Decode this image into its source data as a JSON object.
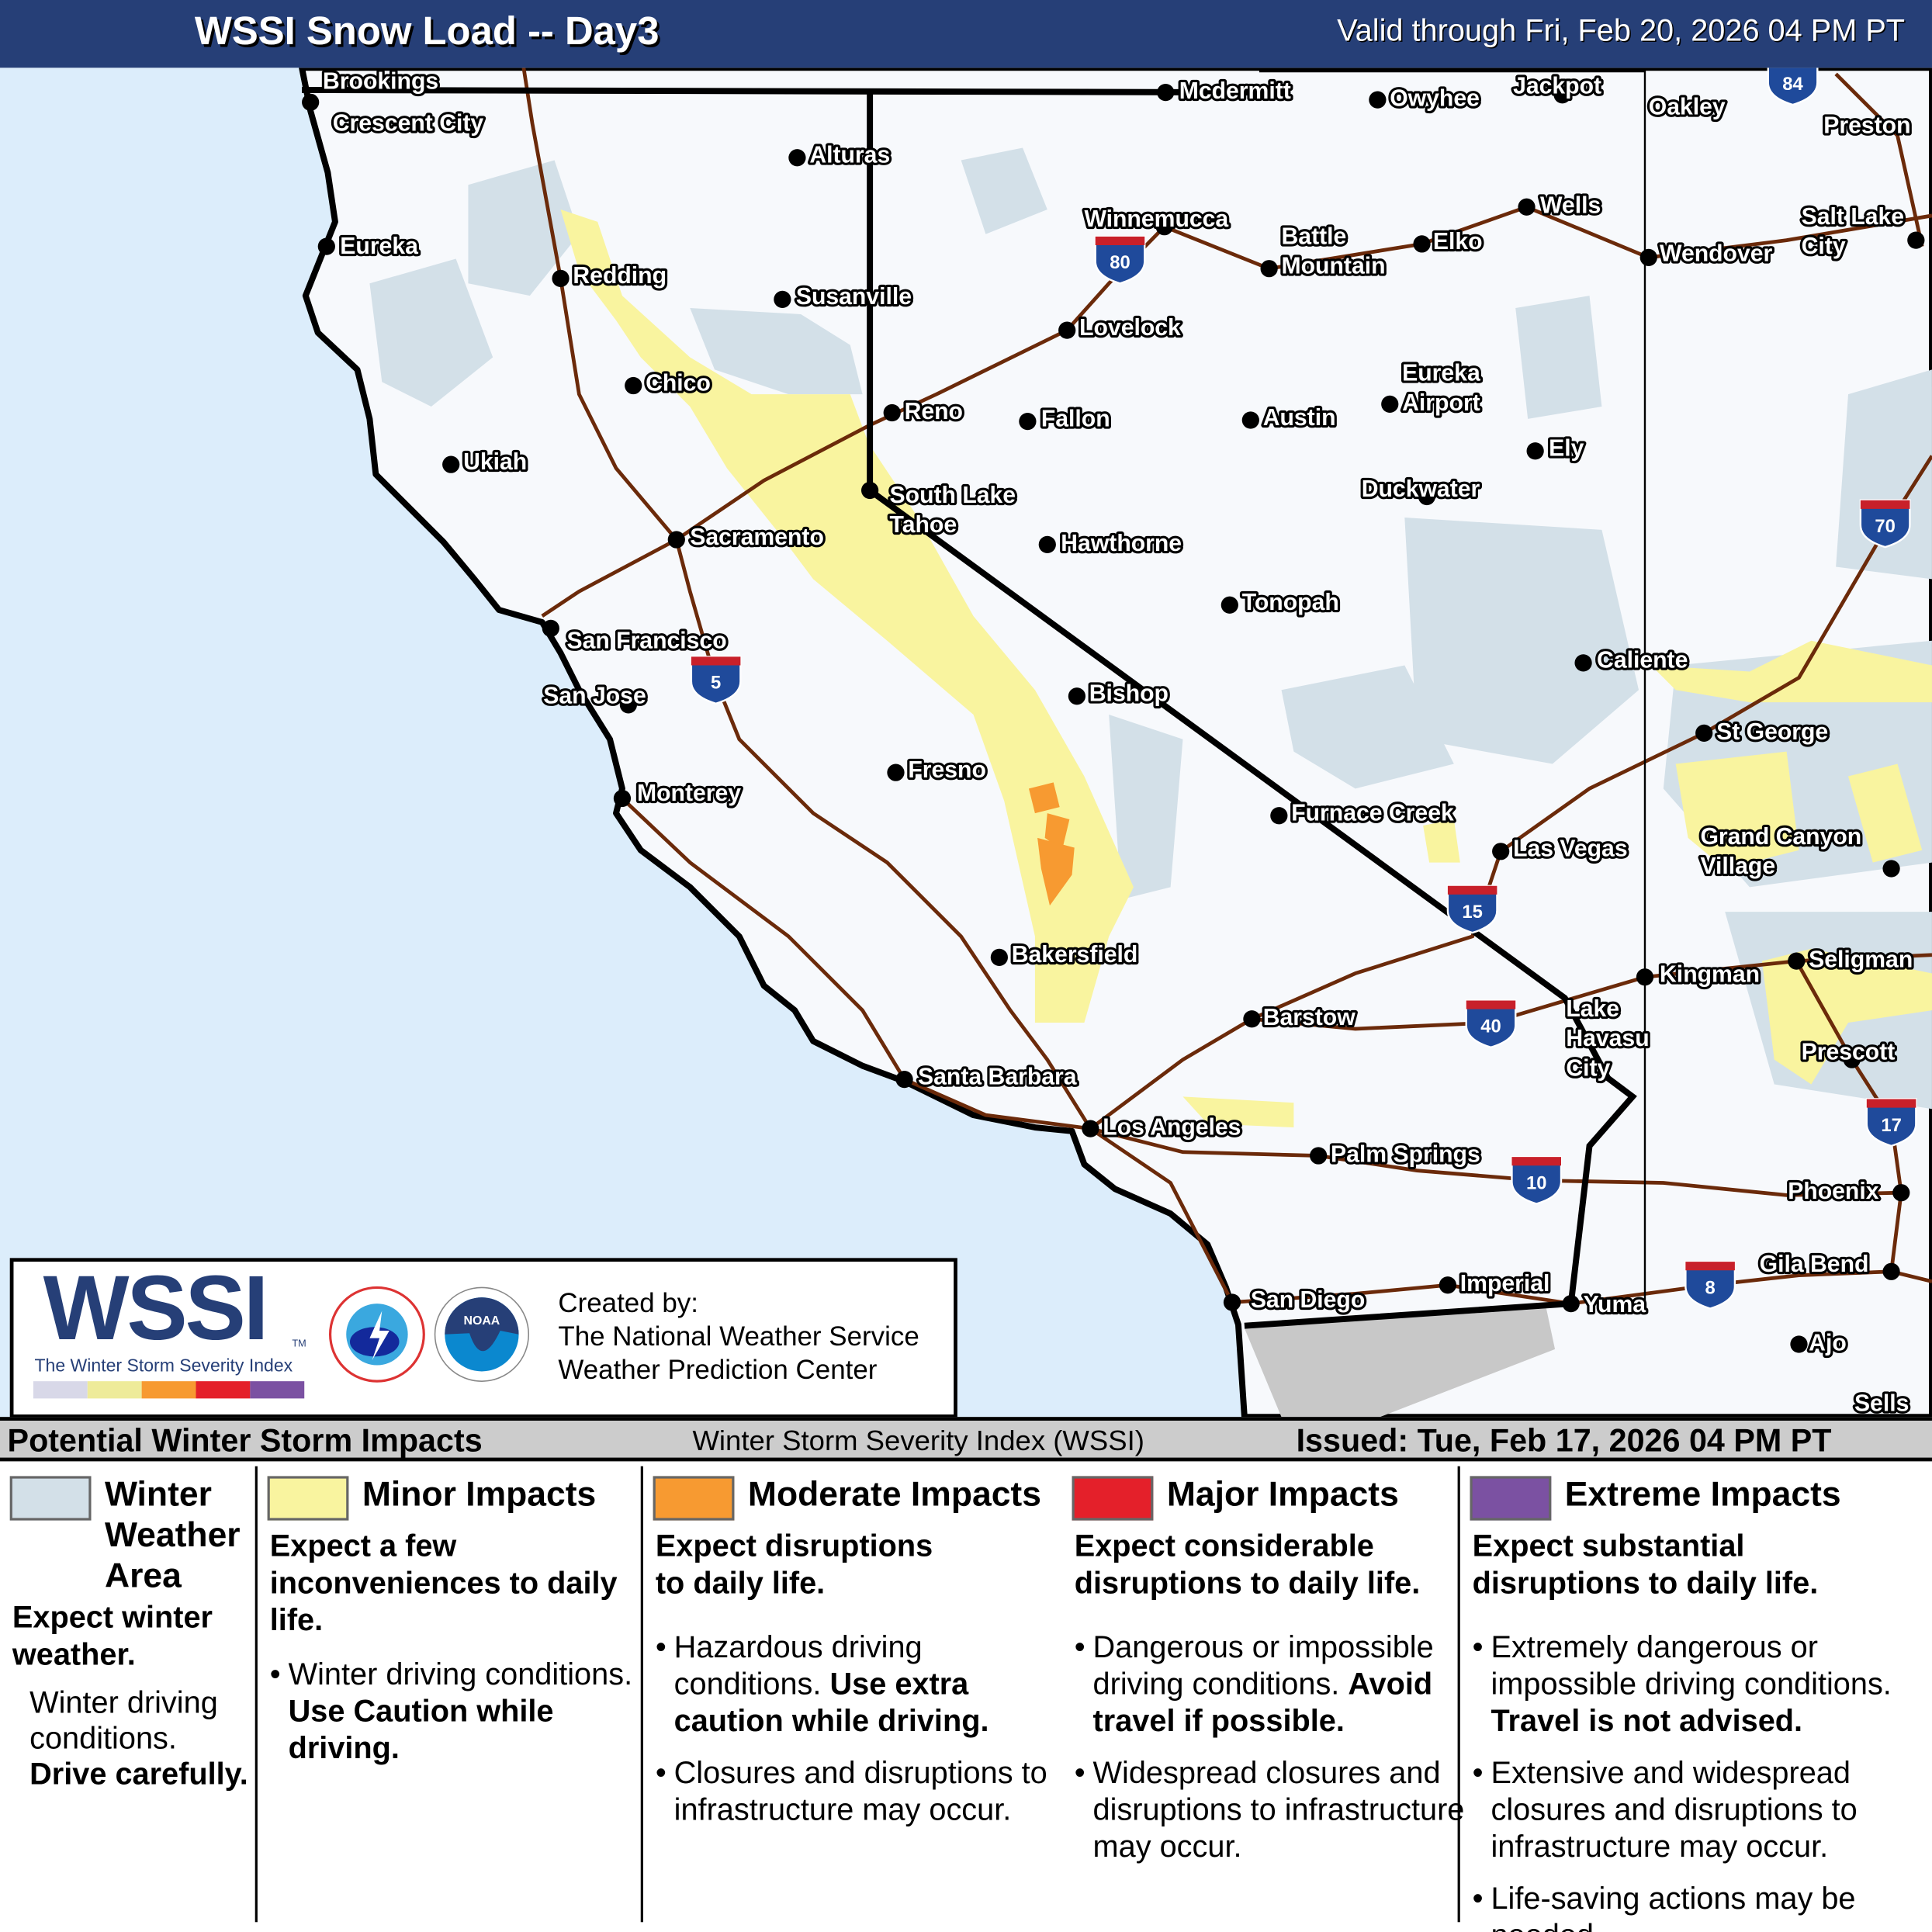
{
  "header": {
    "title": "WSSI Snow Load -- Day3",
    "valid": "Valid through Fri, Feb 20, 2026 04 PM PT"
  },
  "colors": {
    "header_bg": "#263f77",
    "ocean": "#dcedfb",
    "land": "#f7f9fc",
    "mexico": "#c8c8c8",
    "winter_weather_area": "#d3e0e8",
    "minor": "#f9f49f",
    "moderate": "#f79a31",
    "major": "#e4202a",
    "extreme": "#7b51a2",
    "roads": "#6b2a0a",
    "borders": "#000000"
  },
  "map": {
    "cities": [
      "Brookings",
      "Crescent City",
      "Alturas",
      "Eureka",
      "Redding",
      "Susanville",
      "Winnemucca",
      "Battle\nMountain",
      "Elko",
      "Wells",
      "Wendover",
      "Salt Lake\nCity",
      "Mcdermitt",
      "Owyhee",
      "Jackpot",
      "Oakley",
      "Preston",
      "Lovelock",
      "Chico",
      "Reno",
      "Fallon",
      "Austin",
      "Eureka\nAirport",
      "Ely",
      "Ukiah",
      "South Lake\nTahoe",
      "Duckwater",
      "Sacramento",
      "Hawthorne",
      "Tonopah",
      "San Francisco",
      "San Jose",
      "Caliente",
      "Bishop",
      "St George",
      "Fresno",
      "Monterey",
      "Furnace Creek",
      "Grand Canyon\nVillage",
      "Las Vegas",
      "Bakersfield",
      "Kingman",
      "Seligman",
      "Lake\nHavasu\nCity",
      "Barstow",
      "Prescott",
      "Santa Barbara",
      "Los Angeles",
      "Palm Springs",
      "Phoenix",
      "Gila Bend",
      "San Diego",
      "Imperial",
      "Yuma",
      "Ajo",
      "Sells"
    ],
    "interstates": [
      "84",
      "80",
      "70",
      "5",
      "15",
      "40",
      "17",
      "10",
      "8"
    ]
  },
  "logo": {
    "wssi": "WSSI",
    "tm": "TM",
    "subtitle": "The Winter Storm Severity Index",
    "created_by": "Created by:",
    "org1": "The National Weather Service",
    "org2": "Weather Prediction Center",
    "nws_seal": "NATIONAL WEATHER SERVICE",
    "noaa_seal": "NOAA"
  },
  "legend_bar": {
    "left": "Potential Winter Storm Impacts",
    "center": "Winter Storm Severity Index (WSSI)",
    "issued": "Issued: Tue, Feb 17, 2026 04 PM PT"
  },
  "legend": [
    {
      "title": [
        "Winter",
        "Weather",
        "Area"
      ],
      "color": "#d3e0e8",
      "heading": [
        "Expect winter",
        "weather."
      ],
      "text": [
        "Winter driving",
        "conditions."
      ],
      "bold": "Drive carefully."
    },
    {
      "title": [
        "Minor Impacts"
      ],
      "color": "#f9f49f",
      "heading": [
        "Expect a few",
        "inconveniences to daily",
        "life."
      ],
      "bullets": [
        {
          "normal": "Winter driving conditions.",
          "bold": "Use Caution while driving."
        }
      ]
    },
    {
      "title": [
        "Moderate Impacts"
      ],
      "color": "#f79a31",
      "heading": [
        "Expect disruptions",
        "to daily life."
      ],
      "bullets": [
        {
          "normal": "Hazardous driving conditions.",
          "bold": "Use extra caution while driving."
        },
        {
          "normal": "Closures and disruptions to infrastructure may occur.",
          "bold": ""
        }
      ]
    },
    {
      "title": [
        "Major Impacts"
      ],
      "color": "#e4202a",
      "heading": [
        "Expect considerable",
        "disruptions to daily life."
      ],
      "bullets": [
        {
          "normal": "Dangerous or impossible driving conditions.",
          "bold": "Avoid travel if possible."
        },
        {
          "normal": "Widespread closures and disruptions to infrastructure may occur.",
          "bold": ""
        }
      ]
    },
    {
      "title": [
        "Extreme Impacts"
      ],
      "color": "#7b51a2",
      "heading": [
        "Expect substantial",
        "disruptions to daily life."
      ],
      "bullets": [
        {
          "normal": "Extremely dangerous or impossible driving conditions.",
          "bold": "Travel is not advised."
        },
        {
          "normal": "Extensive and widespread closures and disruptions to infrastructure may occur.",
          "bold": ""
        },
        {
          "normal": "Life-saving actions may be needed.",
          "bold": ""
        }
      ]
    }
  ]
}
